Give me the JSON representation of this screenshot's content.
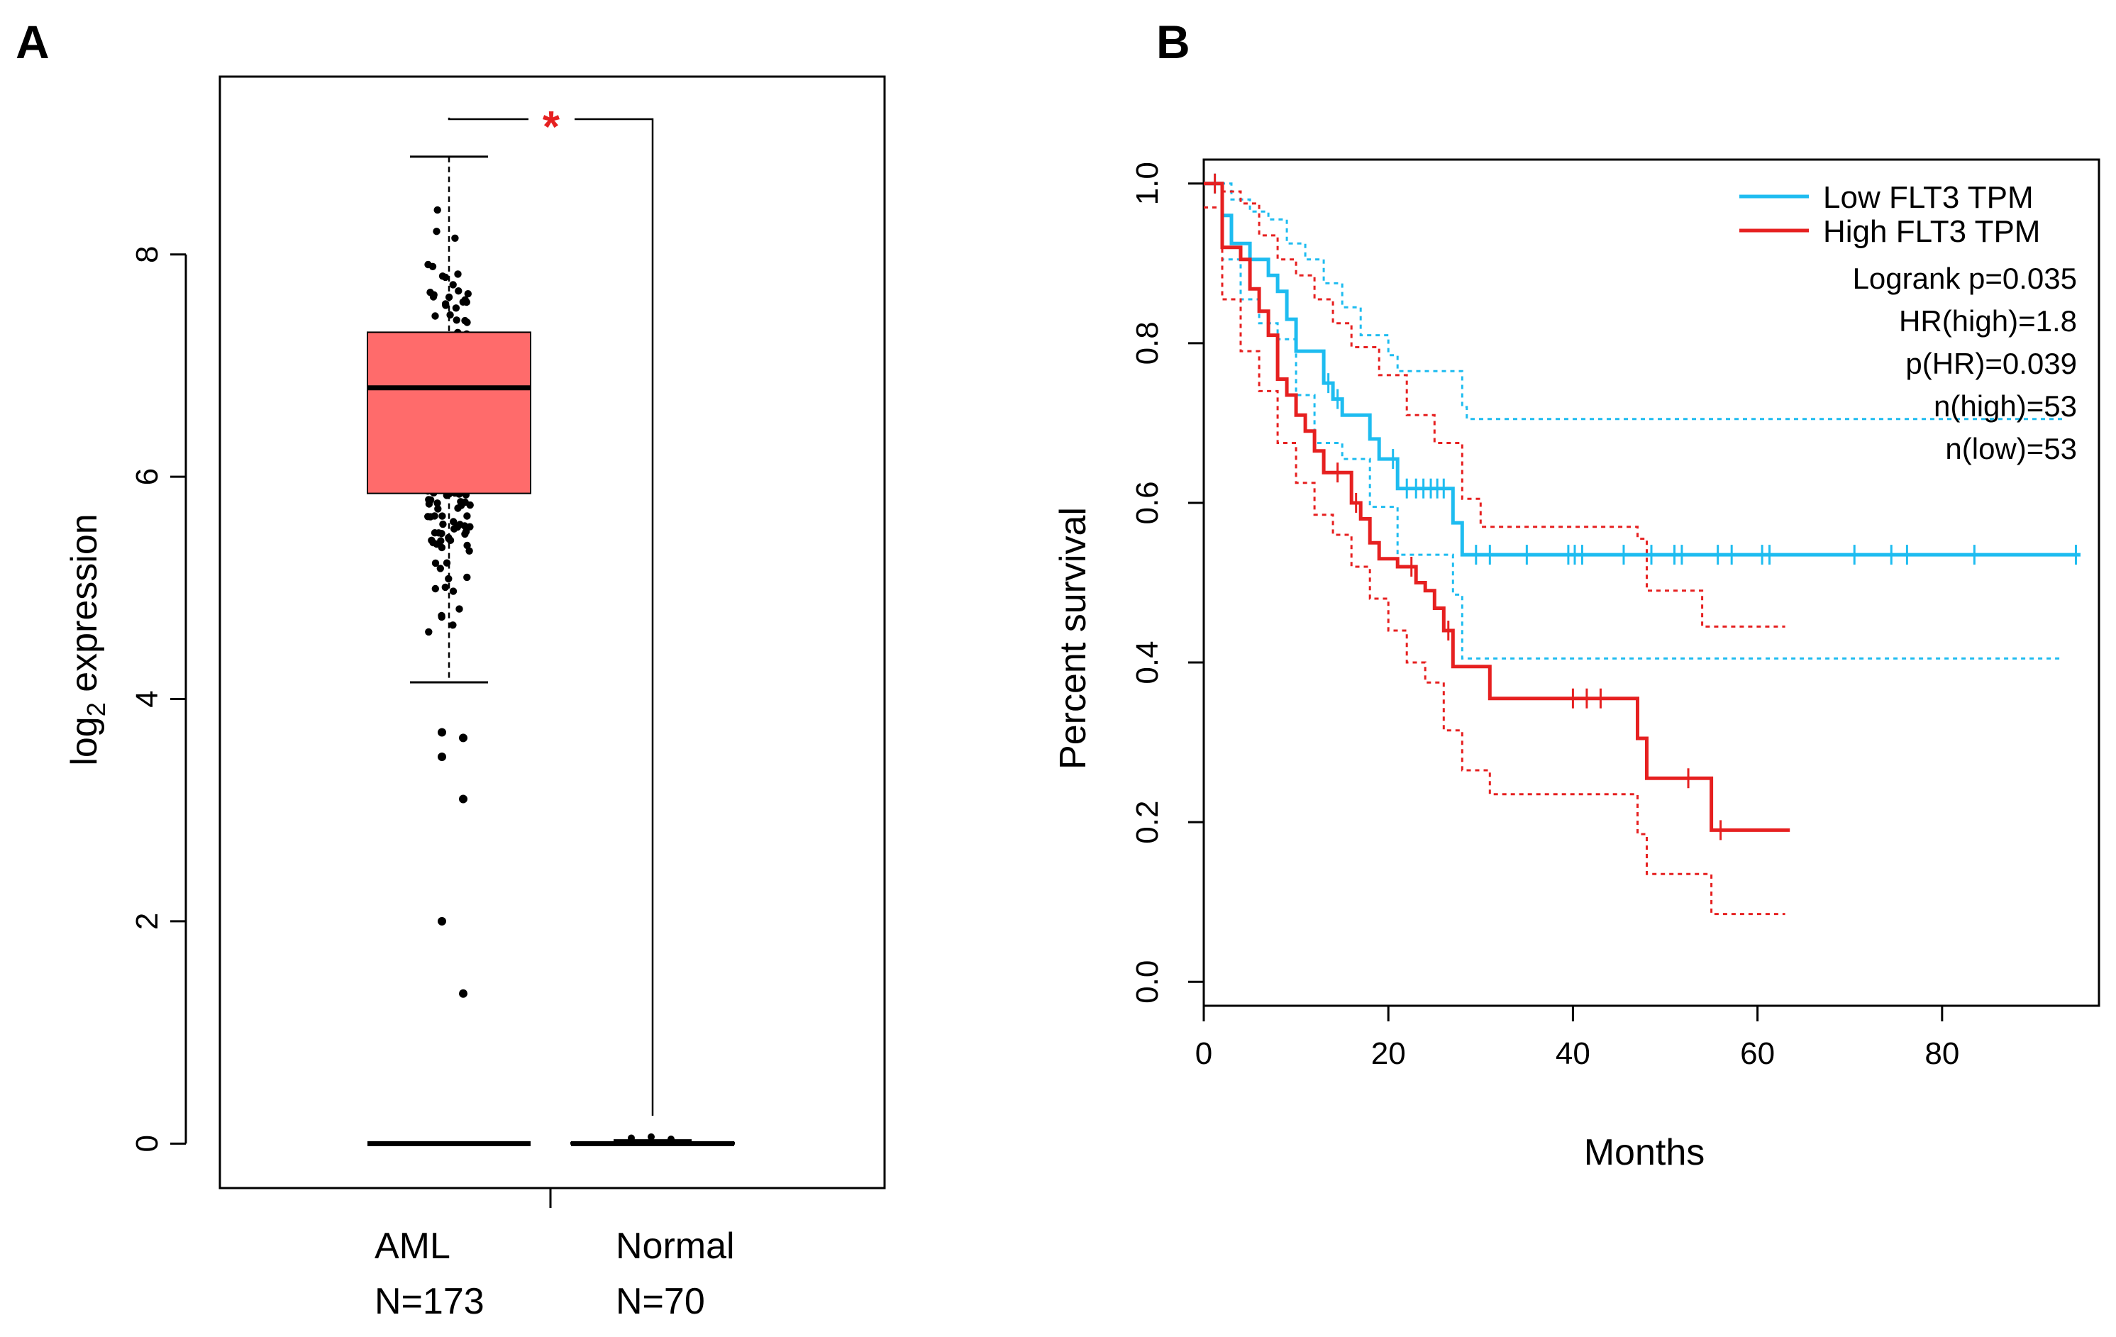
{
  "panels": {
    "a_label": "A",
    "b_label": "B"
  },
  "chart_data": [
    {
      "type": "boxplot",
      "panel": "A",
      "ylabel_main": "log",
      "ylabel_sub": "2",
      "ylabel_rest": " expression",
      "ylim": [
        -0.4,
        9.6
      ],
      "yticks": [
        0,
        2,
        4,
        6,
        8
      ],
      "significance_marker": "*",
      "groups": [
        {
          "name": "AML",
          "n_label": "N=173",
          "color": "#ff6b6b",
          "box": {
            "q1": 5.85,
            "median": 6.8,
            "q3": 7.3,
            "whisker_low": 4.15,
            "whisker_high": 8.88
          },
          "outliers": [
            3.7,
            3.65,
            3.48,
            3.1,
            2.0,
            1.35
          ],
          "zero_line": 0
        },
        {
          "name": "Normal",
          "n_label": "N=70",
          "color": "#ffffff",
          "box": {
            "q1": 0.0,
            "median": 0.0,
            "q3": 0.01,
            "whisker_low": 0.0,
            "whisker_high": 0.03
          },
          "outliers": [
            0.05,
            0.06,
            0.04
          ]
        }
      ]
    },
    {
      "type": "line",
      "panel": "B",
      "subtype": "kaplan-meier",
      "xlabel": "Months",
      "ylabel": "Percent survival",
      "xlim": [
        0,
        97
      ],
      "ylim": [
        -0.03,
        1.03
      ],
      "xticks": [
        0,
        20,
        40,
        60,
        80
      ],
      "yticks": [
        0.0,
        0.2,
        0.4,
        0.6,
        0.8,
        1.0
      ],
      "legend_position": "top-right",
      "stats": [
        "Logrank p=0.035",
        "HR(high)=1.8",
        "p(HR)=0.039",
        "n(high)=53",
        "n(low)=53"
      ],
      "series": [
        {
          "name": "Low FLT3 TPM",
          "color": "#1ebcf0",
          "steps": [
            [
              0,
              1.0
            ],
            [
              2,
              0.96
            ],
            [
              3,
              0.925
            ],
            [
              5,
              0.905
            ],
            [
              7,
              0.885
            ],
            [
              8,
              0.865
            ],
            [
              9,
              0.83
            ],
            [
              10,
              0.79
            ],
            [
              13,
              0.75
            ],
            [
              14,
              0.73
            ],
            [
              15,
              0.71
            ],
            [
              18,
              0.68
            ],
            [
              19,
              0.655
            ],
            [
              21,
              0.618
            ],
            [
              27,
              0.575
            ],
            [
              28,
              0.535
            ],
            [
              95,
              0.535
            ]
          ],
          "censor": [
            1.2,
            13.5,
            14.5,
            20.5,
            22,
            23,
            23.8,
            24.6,
            25.3,
            26,
            29.5,
            31,
            35,
            39.5,
            40.2,
            41,
            45.5,
            48.5,
            51,
            51.8,
            55.7,
            57.2,
            60.5,
            61.3,
            70.5,
            74.5,
            76.2,
            83.5,
            94.5
          ],
          "ci_upper": [
            [
              0,
              1.0
            ],
            [
              3,
              0.98
            ],
            [
              5,
              0.965
            ],
            [
              7,
              0.955
            ],
            [
              9,
              0.925
            ],
            [
              11,
              0.905
            ],
            [
              13,
              0.875
            ],
            [
              15,
              0.845
            ],
            [
              17,
              0.81
            ],
            [
              20,
              0.785
            ],
            [
              21,
              0.765
            ],
            [
              28,
              0.72
            ],
            [
              28.5,
              0.705
            ],
            [
              93,
              0.705
            ]
          ],
          "ci_lower": [
            [
              0,
              0.97
            ],
            [
              2,
              0.905
            ],
            [
              4,
              0.855
            ],
            [
              6,
              0.825
            ],
            [
              8,
              0.805
            ],
            [
              10,
              0.735
            ],
            [
              12,
              0.675
            ],
            [
              15,
              0.655
            ],
            [
              18,
              0.595
            ],
            [
              21,
              0.535
            ],
            [
              27,
              0.485
            ],
            [
              28,
              0.405
            ],
            [
              93,
              0.405
            ]
          ]
        },
        {
          "name": "High FLT3 TPM",
          "color": "#e62020",
          "steps": [
            [
              0,
              1.0
            ],
            [
              2,
              0.92
            ],
            [
              4,
              0.905
            ],
            [
              5,
              0.868
            ],
            [
              6,
              0.84
            ],
            [
              7,
              0.81
            ],
            [
              8,
              0.755
            ],
            [
              9,
              0.735
            ],
            [
              10,
              0.71
            ],
            [
              11,
              0.69
            ],
            [
              12,
              0.665
            ],
            [
              13,
              0.638
            ],
            [
              16,
              0.6
            ],
            [
              17,
              0.58
            ],
            [
              18,
              0.55
            ],
            [
              19,
              0.53
            ],
            [
              21,
              0.52
            ],
            [
              23,
              0.5
            ],
            [
              24,
              0.49
            ],
            [
              25,
              0.468
            ],
            [
              26,
              0.44
            ],
            [
              27,
              0.395
            ],
            [
              31,
              0.355
            ],
            [
              47,
              0.305
            ],
            [
              48,
              0.255
            ],
            [
              55,
              0.19
            ],
            [
              63.5,
              0.19
            ]
          ],
          "censor": [
            1.2,
            14.5,
            16.5,
            22.5,
            26.5,
            40,
            41.5,
            43,
            52.5,
            56
          ],
          "ci_upper": [
            [
              0,
              1.0
            ],
            [
              2,
              0.99
            ],
            [
              4,
              0.975
            ],
            [
              6,
              0.935
            ],
            [
              8,
              0.905
            ],
            [
              10,
              0.885
            ],
            [
              12,
              0.855
            ],
            [
              14,
              0.825
            ],
            [
              16,
              0.795
            ],
            [
              19,
              0.76
            ],
            [
              22,
              0.71
            ],
            [
              25,
              0.675
            ],
            [
              28,
              0.605
            ],
            [
              30,
              0.57
            ],
            [
              47,
              0.555
            ],
            [
              48,
              0.49
            ],
            [
              54,
              0.445
            ],
            [
              63,
              0.445
            ]
          ],
          "ci_lower": [
            [
              0,
              0.97
            ],
            [
              2,
              0.855
            ],
            [
              4,
              0.79
            ],
            [
              6,
              0.74
            ],
            [
              8,
              0.675
            ],
            [
              10,
              0.625
            ],
            [
              12,
              0.585
            ],
            [
              14,
              0.56
            ],
            [
              16,
              0.52
            ],
            [
              18,
              0.48
            ],
            [
              20,
              0.44
            ],
            [
              22,
              0.4
            ],
            [
              24,
              0.375
            ],
            [
              26,
              0.315
            ],
            [
              28,
              0.265
            ],
            [
              31,
              0.235
            ],
            [
              47,
              0.185
            ],
            [
              48,
              0.135
            ],
            [
              55,
              0.085
            ],
            [
              63,
              0.085
            ]
          ]
        }
      ]
    }
  ]
}
